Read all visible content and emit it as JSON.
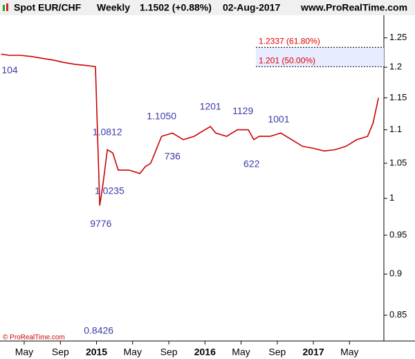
{
  "chart_data": {
    "type": "line",
    "header": {
      "symbol": "Spot EUR/CHF",
      "period": "Weekly",
      "price": "1.1502 (+0.88%)",
      "date": "02-Aug-2017",
      "site": "www.ProRealTime.com"
    },
    "copyright": "© ProRealTime.com",
    "log_scale": true,
    "xlim": [
      2014.11,
      2017.65
    ],
    "xticks": [
      {
        "value": 2014.333,
        "label": "May"
      },
      {
        "value": 2014.667,
        "label": "Sep"
      },
      {
        "value": 2015.0,
        "label": "2015"
      },
      {
        "value": 2015.333,
        "label": "May"
      },
      {
        "value": 2015.667,
        "label": "Sep"
      },
      {
        "value": 2016.0,
        "label": "2016"
      },
      {
        "value": 2016.333,
        "label": "May"
      },
      {
        "value": 2016.667,
        "label": "Sep"
      },
      {
        "value": 2017.0,
        "label": "2017"
      },
      {
        "value": 2017.333,
        "label": "May"
      }
    ],
    "ylim": [
      0.82,
      1.29
    ],
    "yticks": [
      0.85,
      0.9,
      0.95,
      1,
      1.05,
      1.1,
      1.15,
      1.2,
      1.25
    ],
    "series": [
      {
        "name": "EUR/CHF",
        "color": "#cc0000",
        "x": [
          2014.12,
          2014.2,
          2014.3,
          2014.4,
          2014.5,
          2014.6,
          2014.7,
          2014.8,
          2014.9,
          2014.99,
          2015.03,
          2015.06,
          2015.1,
          2015.15,
          2015.2,
          2015.3,
          2015.4,
          2015.45,
          2015.5,
          2015.55,
          2015.6,
          2015.7,
          2015.8,
          2015.9,
          2016.0,
          2016.05,
          2016.1,
          2016.2,
          2016.3,
          2016.4,
          2016.45,
          2016.5,
          2016.6,
          2016.7,
          2016.8,
          2016.9,
          2017.0,
          2017.1,
          2017.2,
          2017.3,
          2017.4,
          2017.5,
          2017.55,
          2017.6
        ],
        "values": [
          1.222,
          1.22,
          1.22,
          1.218,
          1.215,
          1.212,
          1.208,
          1.205,
          1.203,
          1.201,
          0.99,
          1.02,
          1.07,
          1.065,
          1.04,
          1.04,
          1.035,
          1.045,
          1.05,
          1.07,
          1.09,
          1.095,
          1.085,
          1.09,
          1.1,
          1.105,
          1.095,
          1.09,
          1.1,
          1.1,
          1.085,
          1.09,
          1.09,
          1.095,
          1.085,
          1.075,
          1.072,
          1.068,
          1.07,
          1.075,
          1.085,
          1.09,
          1.11,
          1.15
        ]
      }
    ],
    "levels": [
      {
        "value": 1.2337,
        "label": "1.2337 (61.80%)"
      },
      {
        "value": 1.201,
        "label": "1.201 (50.00%)"
      }
    ],
    "annotations": [
      {
        "x": 2014.15,
        "value": 1.2104,
        "label": "104",
        "position": "below"
      },
      {
        "x": 2015.1,
        "value": 1.0812,
        "label": "1.0812",
        "position": "above"
      },
      {
        "x": 2015.04,
        "value": 0.9776,
        "label": "9776",
        "position": "below"
      },
      {
        "x": 2015.02,
        "value": 0.8426,
        "label": "0.8426",
        "position": "below"
      },
      {
        "x": 2015.12,
        "value": 1.0235,
        "label": "1.0235",
        "position": "below"
      },
      {
        "x": 2015.6,
        "value": 1.105,
        "label": "1.1050",
        "position": "above"
      },
      {
        "x": 2015.7,
        "value": 1.0736,
        "label": "736",
        "position": "below"
      },
      {
        "x": 2016.05,
        "value": 1.1201,
        "label": "1201",
        "position": "above"
      },
      {
        "x": 2016.35,
        "value": 1.1129,
        "label": "1129",
        "position": "above"
      },
      {
        "x": 2016.43,
        "value": 1.0622,
        "label": "622",
        "position": "below"
      },
      {
        "x": 2016.68,
        "value": 1.1001,
        "label": "1001",
        "position": "above"
      }
    ]
  }
}
